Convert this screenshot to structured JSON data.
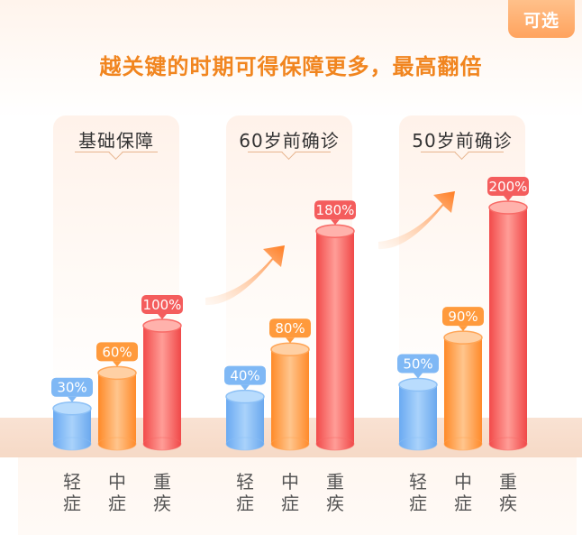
{
  "badge": "可选",
  "headline": "越关键的时期可得保障更多，最高翻倍",
  "colors": {
    "mild": "#7fb8f5",
    "moderate": "#ff9a3c",
    "severe": "#f45d5d",
    "headline": "#f1851f",
    "arrow": "#ff8a2e"
  },
  "chart_data": {
    "type": "bar",
    "categories": [
      "基础保障",
      "60岁前确诊",
      "50岁前确诊"
    ],
    "series": [
      {
        "name": "轻症",
        "values": [
          30,
          40,
          50
        ]
      },
      {
        "name": "中症",
        "values": [
          60,
          80,
          90
        ]
      },
      {
        "name": "重疾",
        "values": [
          100,
          180,
          200
        ]
      }
    ],
    "unit": "%",
    "category_ticks": [
      [
        "轻",
        "症"
      ],
      [
        "中",
        "症"
      ],
      [
        "重",
        "疾"
      ]
    ],
    "ylim": [
      0,
      200
    ],
    "grid": false
  }
}
